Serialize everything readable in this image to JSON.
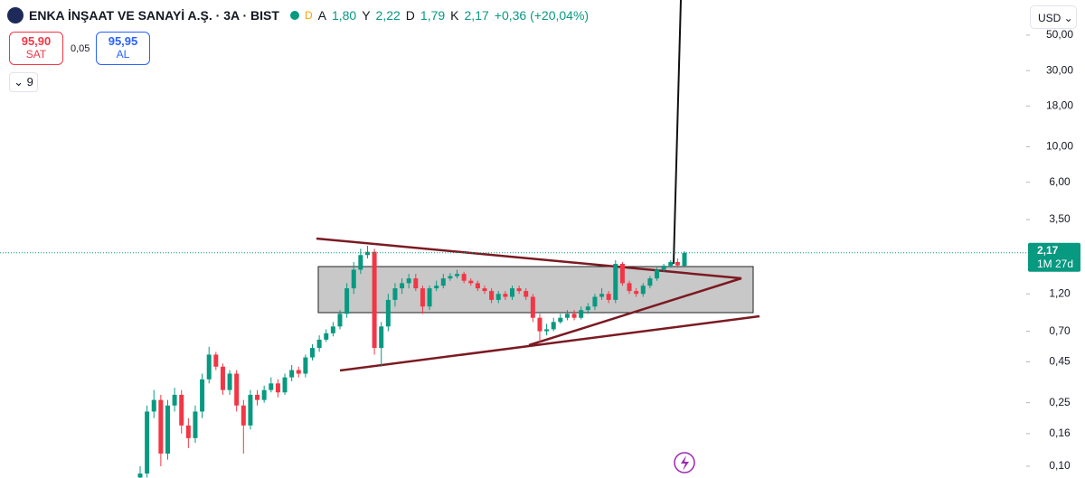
{
  "header": {
    "symbol": "ENKA İNŞAAT VE SANAYİ A.Ş. · 3A · BIST",
    "flag": "D",
    "ohlc": [
      {
        "key": "A",
        "value": "1,80"
      },
      {
        "key": "Y",
        "value": "2,22"
      },
      {
        "key": "D",
        "value": "1,79"
      },
      {
        "key": "K",
        "value": "2,17"
      }
    ],
    "change": "+0,36 (+20,04%)",
    "currency": "USD"
  },
  "trade": {
    "sell_price": "95,90",
    "sell_label": "SAT",
    "spread": "0,05",
    "buy_price": "95,95",
    "buy_label": "AL",
    "indicators": "9"
  },
  "chart_data": {
    "type": "candlestick",
    "log_scale": true,
    "ylim": [
      0.0844,
      83
    ],
    "yticks": [
      {
        "value": 50,
        "label": "50,00"
      },
      {
        "value": 30,
        "label": "30,00"
      },
      {
        "value": 18,
        "label": "18,00"
      },
      {
        "value": 10,
        "label": "10,00"
      },
      {
        "value": 6,
        "label": "6,00"
      },
      {
        "value": 3.5,
        "label": "3,50"
      },
      {
        "value": 1.2,
        "label": "1,20"
      },
      {
        "value": 0.7,
        "label": "0,70"
      },
      {
        "value": 0.45,
        "label": "0,45"
      },
      {
        "value": 0.25,
        "label": "0,25"
      },
      {
        "value": 0.16,
        "label": "0,16"
      },
      {
        "value": 0.1,
        "label": "0,10"
      }
    ],
    "up_color": "#089981",
    "down_color": "#f23645",
    "open": [
      0.085,
      0.09,
      0.22,
      0.26,
      0.12,
      0.24,
      0.28,
      0.18,
      0.15,
      0.22,
      0.35,
      0.5,
      0.42,
      0.3,
      0.38,
      0.24,
      0.18,
      0.28,
      0.26,
      0.3,
      0.33,
      0.29,
      0.36,
      0.4,
      0.38,
      0.48,
      0.55,
      0.62,
      0.68,
      0.75,
      0.9,
      1.3,
      1.7,
      2.1,
      2.2,
      0.55,
      0.75,
      1.1,
      1.3,
      1.4,
      1.5,
      1.3,
      1.0,
      1.3,
      1.35,
      1.5,
      1.55,
      1.6,
      1.45,
      1.4,
      1.3,
      1.25,
      1.1,
      1.2,
      1.15,
      1.3,
      1.25,
      1.15,
      0.85,
      0.7,
      0.72,
      0.8,
      0.85,
      0.9,
      0.85,
      0.95,
      1.0,
      1.15,
      1.2,
      1.1,
      1.85,
      1.4,
      1.25,
      1.2,
      1.35,
      1.5,
      1.7,
      1.8,
      1.9,
      1.8
    ],
    "high": [
      0.1,
      0.24,
      0.3,
      0.28,
      0.26,
      0.31,
      0.3,
      0.2,
      0.24,
      0.38,
      0.56,
      0.52,
      0.44,
      0.4,
      0.4,
      0.26,
      0.3,
      0.3,
      0.32,
      0.36,
      0.35,
      0.38,
      0.43,
      0.42,
      0.5,
      0.58,
      0.66,
      0.72,
      0.8,
      0.95,
      1.4,
      1.9,
      2.3,
      2.4,
      2.3,
      0.8,
      1.2,
      1.4,
      1.5,
      1.6,
      1.6,
      1.35,
      1.35,
      1.45,
      1.6,
      1.62,
      1.7,
      1.65,
      1.5,
      1.45,
      1.35,
      1.3,
      1.25,
      1.25,
      1.35,
      1.35,
      1.3,
      1.2,
      0.9,
      0.78,
      0.85,
      0.9,
      0.95,
      0.95,
      1.0,
      1.05,
      1.2,
      1.3,
      1.25,
      1.95,
      1.9,
      1.45,
      1.3,
      1.4,
      1.55,
      1.75,
      1.85,
      1.95,
      2.0,
      2.22
    ],
    "low": [
      0.08,
      0.085,
      0.2,
      0.1,
      0.11,
      0.22,
      0.16,
      0.13,
      0.14,
      0.2,
      0.33,
      0.4,
      0.28,
      0.28,
      0.22,
      0.12,
      0.17,
      0.24,
      0.25,
      0.29,
      0.27,
      0.28,
      0.34,
      0.36,
      0.36,
      0.46,
      0.52,
      0.6,
      0.65,
      0.72,
      0.85,
      1.2,
      1.6,
      2.0,
      0.5,
      0.42,
      0.7,
      1.0,
      1.2,
      1.3,
      1.25,
      0.9,
      0.95,
      1.25,
      1.3,
      1.45,
      1.5,
      1.4,
      1.35,
      1.25,
      1.2,
      1.05,
      1.05,
      1.1,
      1.1,
      1.2,
      1.1,
      0.8,
      0.6,
      0.66,
      0.7,
      0.78,
      0.82,
      0.82,
      0.83,
      0.9,
      0.95,
      1.1,
      1.05,
      1.05,
      1.35,
      1.2,
      1.15,
      1.15,
      1.3,
      1.45,
      1.65,
      1.75,
      1.75,
      1.79
    ],
    "close": [
      0.09,
      0.22,
      0.26,
      0.12,
      0.24,
      0.28,
      0.18,
      0.15,
      0.22,
      0.35,
      0.5,
      0.42,
      0.3,
      0.38,
      0.24,
      0.18,
      0.28,
      0.26,
      0.3,
      0.33,
      0.29,
      0.36,
      0.4,
      0.38,
      0.48,
      0.55,
      0.62,
      0.68,
      0.75,
      0.9,
      1.3,
      1.7,
      2.1,
      2.2,
      0.55,
      0.75,
      1.1,
      1.3,
      1.4,
      1.5,
      1.3,
      1.0,
      1.3,
      1.35,
      1.5,
      1.55,
      1.6,
      1.45,
      1.4,
      1.3,
      1.25,
      1.1,
      1.2,
      1.15,
      1.3,
      1.25,
      1.15,
      0.85,
      0.7,
      0.72,
      0.8,
      0.85,
      0.9,
      0.85,
      0.95,
      1.0,
      1.15,
      1.2,
      1.1,
      1.85,
      1.4,
      1.25,
      1.2,
      1.35,
      1.5,
      1.7,
      1.8,
      1.9,
      1.81,
      2.17
    ],
    "price_tag": {
      "value": 2.17,
      "label": "2,17",
      "countdown": "1M 27d"
    }
  }
}
